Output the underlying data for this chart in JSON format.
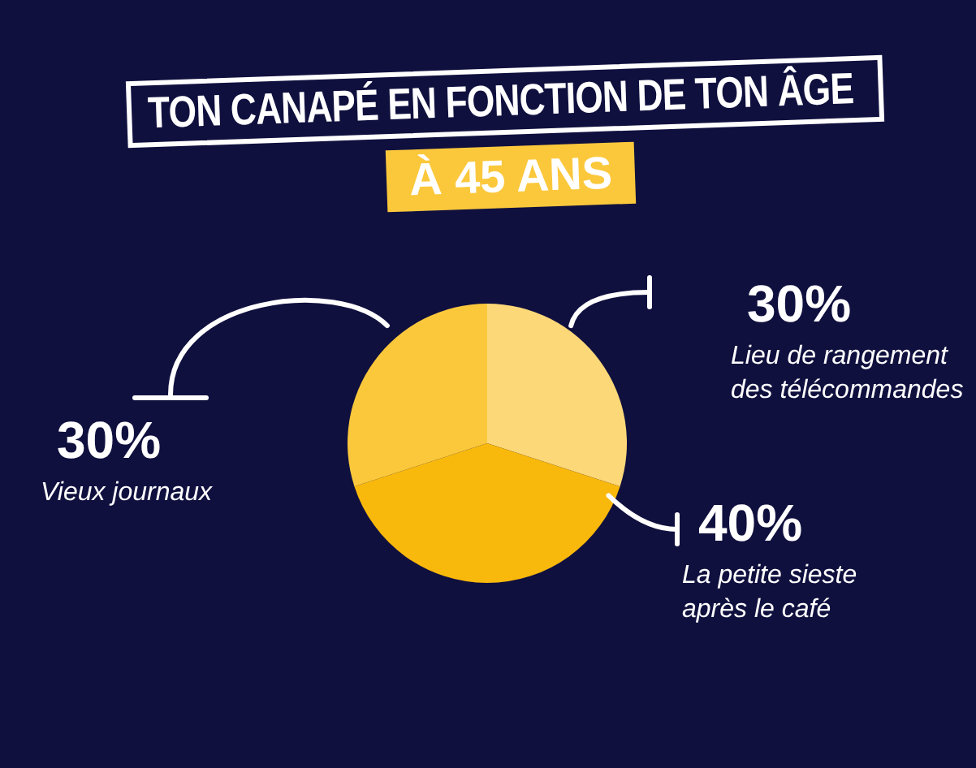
{
  "chart_data": {
    "type": "pie",
    "title": "TON CANAPÉ EN FONCTION DE TON ÂGE",
    "subtitle": "À 45 ANS",
    "categories": [
      "Lieu de rangement des télécommandes",
      "La petite sieste après le café",
      "Vieux journaux"
    ],
    "values": [
      30,
      40,
      30
    ],
    "colors": [
      "#fdd878",
      "#f9b90c",
      "#fbc83c"
    ],
    "value_labels": [
      "30%",
      "40%",
      "30%"
    ]
  }
}
